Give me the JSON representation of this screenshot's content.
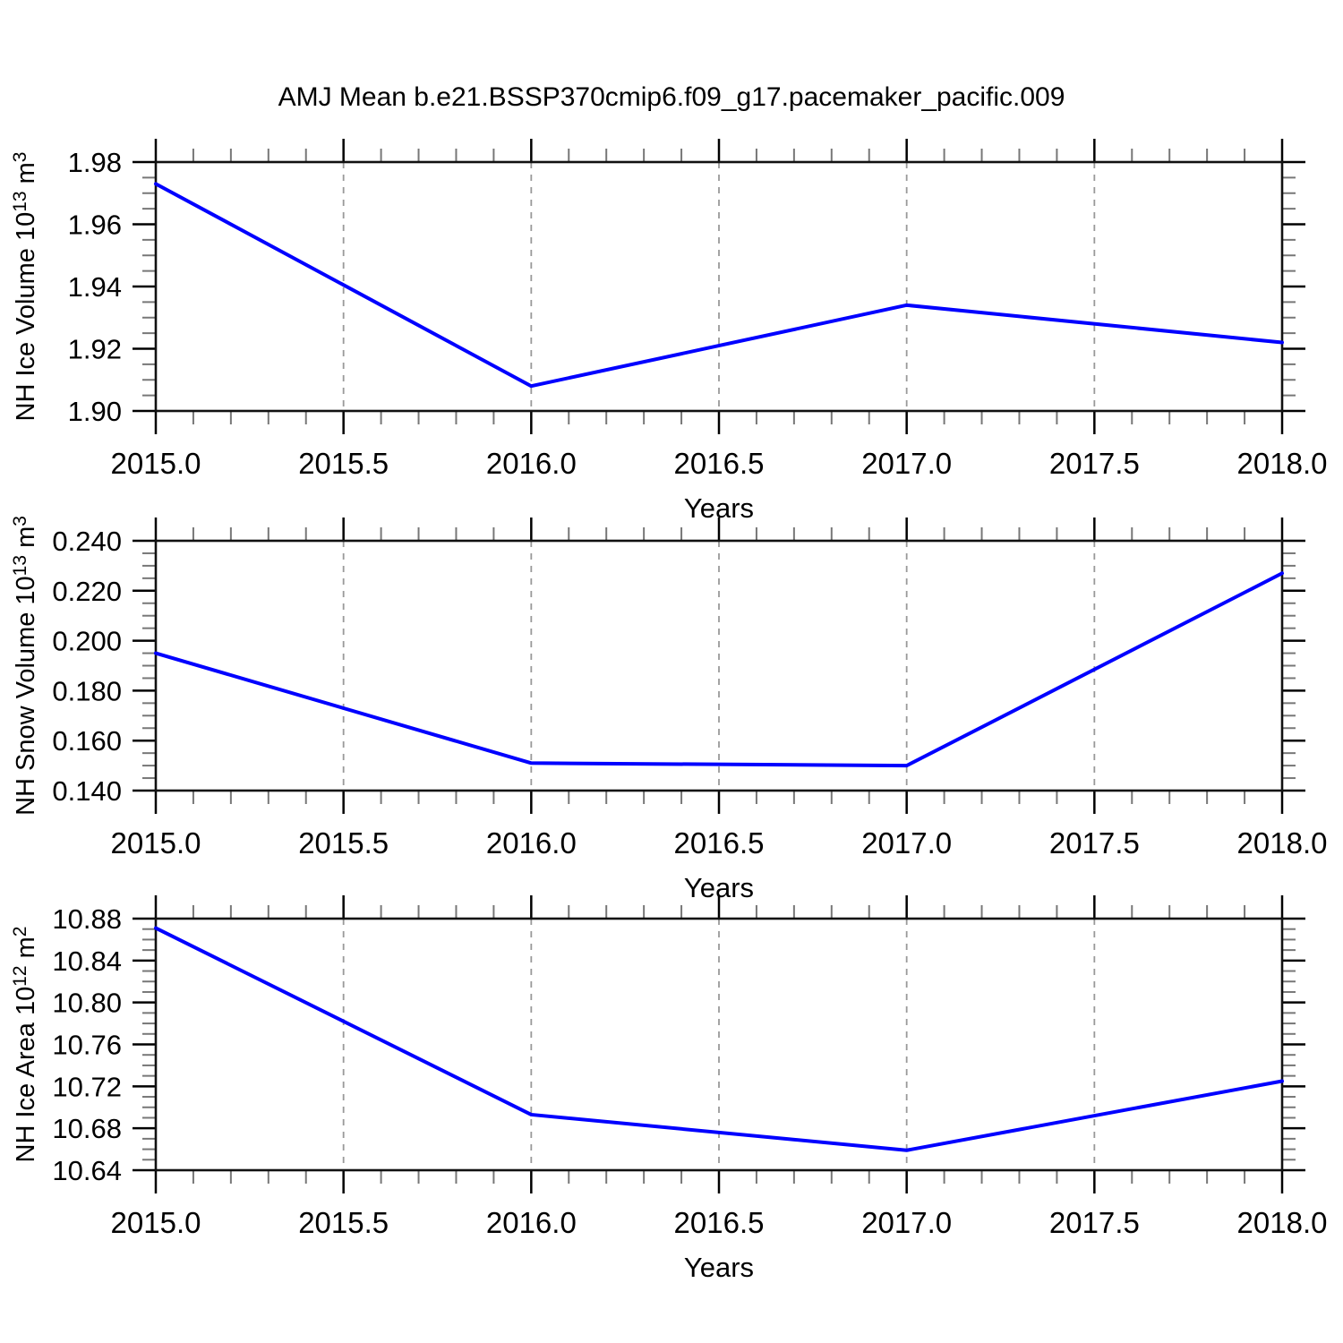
{
  "title": "AMJ Mean b.e21.BSSP370cmip6.f09_g17.pacemaker_pacific.009",
  "colors": {
    "line": "#0000ff",
    "axis": "#111111",
    "major_tick": "#000000",
    "minor_tick": "#777777",
    "gridline": "#999999",
    "text": "#000000"
  },
  "x_axis": {
    "label": "Years",
    "min": 2015.0,
    "max": 2018.0,
    "major_step": 0.5,
    "minor_step": 0.1,
    "tick_labels": [
      "2015.0",
      "2015.5",
      "2016.0",
      "2016.5",
      "2017.0",
      "2017.5",
      "2018.0"
    ],
    "gridlines": [
      2015.5,
      2016.0,
      2016.5,
      2017.0,
      2017.5
    ]
  },
  "chart_data": [
    {
      "id": "nh-ice-volume",
      "type": "line",
      "ylabel_parts": [
        {
          "text": "NH Ice Volume 10"
        },
        {
          "text": "13",
          "sup": true
        },
        {
          "text": " m"
        },
        {
          "text": "3",
          "sup": true
        }
      ],
      "ylabel_plain": "NH Ice Volume 10^13 m^3",
      "xlabel": "Years",
      "ylim": [
        1.9,
        1.98
      ],
      "y_major_step": 0.02,
      "y_minor_step": 0.005,
      "y_tick_labels": [
        "1.90",
        "1.92",
        "1.94",
        "1.96",
        "1.98"
      ],
      "x": [
        2015.0,
        2016.0,
        2017.0,
        2018.0
      ],
      "values": [
        1.973,
        1.908,
        1.934,
        1.922
      ]
    },
    {
      "id": "nh-snow-volume",
      "type": "line",
      "ylabel_parts": [
        {
          "text": "NH Snow Volume 10"
        },
        {
          "text": "13",
          "sup": true
        },
        {
          "text": " m"
        },
        {
          "text": "3",
          "sup": true
        }
      ],
      "ylabel_plain": "NH Snow Volume 10^13 m^3",
      "xlabel": "Years",
      "ylim": [
        0.14,
        0.24
      ],
      "y_major_step": 0.02,
      "y_minor_step": 0.005,
      "y_tick_labels": [
        "0.140",
        "0.160",
        "0.180",
        "0.200",
        "0.220",
        "0.240"
      ],
      "x": [
        2015.0,
        2016.0,
        2017.0,
        2018.0
      ],
      "values": [
        0.195,
        0.151,
        0.15,
        0.227
      ]
    },
    {
      "id": "nh-ice-area",
      "type": "line",
      "ylabel_parts": [
        {
          "text": "NH Ice Area 10"
        },
        {
          "text": "12",
          "sup": true
        },
        {
          "text": " m"
        },
        {
          "text": "2",
          "sup": true
        }
      ],
      "ylabel_plain": "NH Ice Area 10^12 m^2",
      "xlabel": "Years",
      "ylim": [
        10.64,
        10.88
      ],
      "y_major_step": 0.04,
      "y_minor_step": 0.01,
      "y_tick_labels": [
        "10.64",
        "10.68",
        "10.72",
        "10.76",
        "10.80",
        "10.84",
        "10.88"
      ],
      "x": [
        2015.0,
        2016.0,
        2017.0,
        2018.0
      ],
      "values": [
        10.871,
        10.693,
        10.659,
        10.725
      ]
    }
  ]
}
